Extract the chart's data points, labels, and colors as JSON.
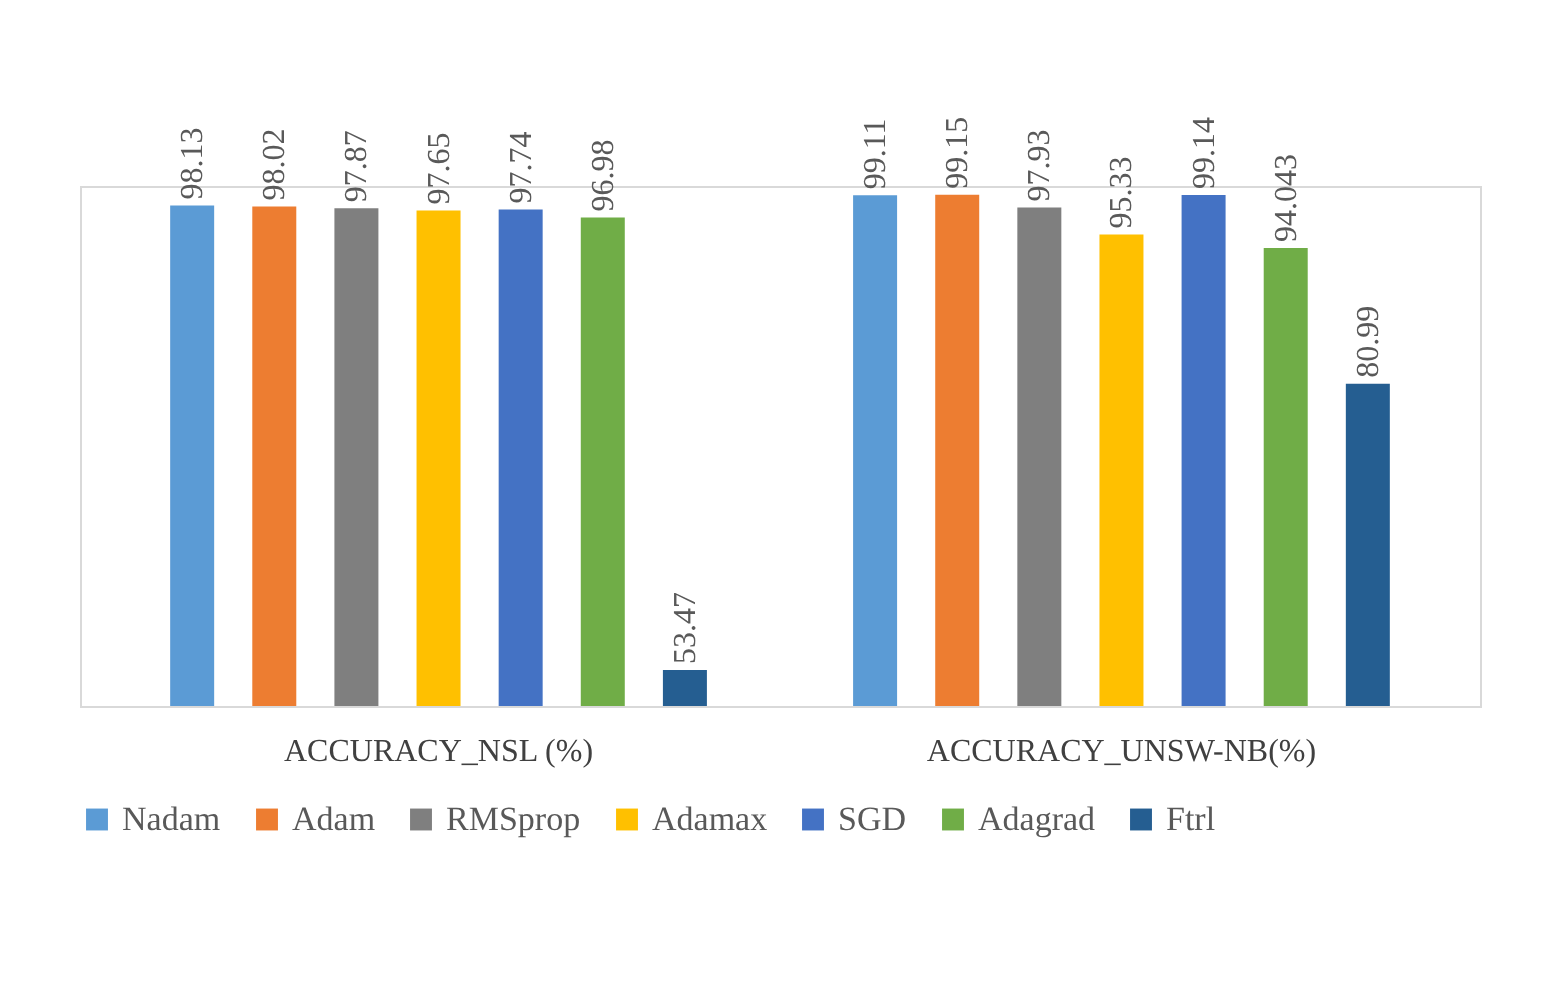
{
  "chart_data": {
    "type": "bar",
    "categories": [
      "ACCURACY_NSL (%)",
      "ACCURACY_UNSW-NB(%)"
    ],
    "series": [
      {
        "name": "Nadam",
        "color": "#5b9bd5",
        "values": [
          98.13,
          99.11
        ]
      },
      {
        "name": "Adam",
        "color": "#ed7d31",
        "values": [
          98.02,
          99.15
        ]
      },
      {
        "name": "RMSprop",
        "color": "#7f7f7f",
        "values": [
          97.87,
          97.93
        ]
      },
      {
        "name": "Adamax",
        "color": "#ffc000",
        "values": [
          97.65,
          95.33
        ]
      },
      {
        "name": "SGD",
        "color": "#4472c4",
        "values": [
          97.74,
          99.14
        ]
      },
      {
        "name": "Adagrad",
        "color": "#70ad47",
        "values": [
          96.98,
          94.043
        ]
      },
      {
        "name": "Ftrl",
        "color": "#255e91",
        "values": [
          53.47,
          80.99
        ]
      }
    ],
    "ylim": [
      50,
      100
    ],
    "data_labels": true,
    "tick_labels": "x",
    "legend": "bottom"
  }
}
